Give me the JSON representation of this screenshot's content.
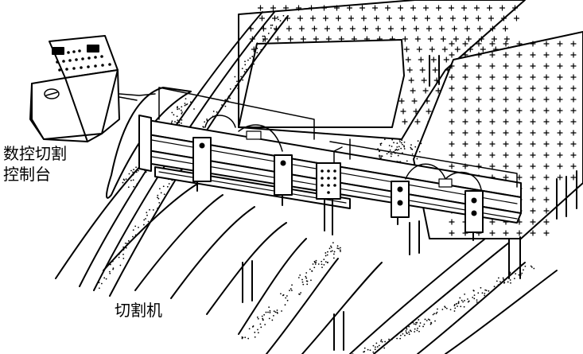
{
  "labels": {
    "console_line1": "数控切割",
    "console_line2": "控制台",
    "machine": "切割机"
  }
}
